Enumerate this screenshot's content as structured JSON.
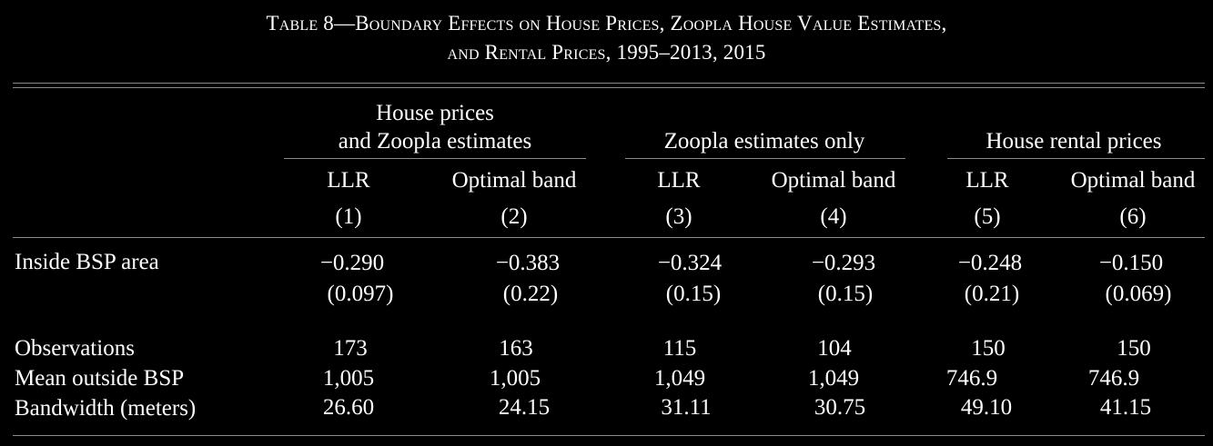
{
  "title": {
    "line1": "Table 8—Boundary Effects on House Prices, Zoopla House Value Estimates,",
    "line2": "and Rental Prices, 1995–2013, 2015"
  },
  "groups": [
    {
      "line1": "House prices",
      "line2": "and Zoopla estimates"
    },
    {
      "line1": "",
      "line2": "Zoopla estimates only"
    },
    {
      "line1": "",
      "line2": "House rental prices"
    }
  ],
  "columns": [
    {
      "method": "LLR",
      "number": "(1)"
    },
    {
      "method": "Optimal band",
      "number": "(2)"
    },
    {
      "method": "LLR",
      "number": "(3)"
    },
    {
      "method": "Optimal band",
      "number": "(4)"
    },
    {
      "method": "LLR",
      "number": "(5)"
    },
    {
      "method": "Optimal band",
      "number": "(6)"
    }
  ],
  "rows": {
    "inside": {
      "label": "Inside BSP area",
      "coef": [
        "−0.290",
        "−0.383",
        "−0.324",
        "−0.293",
        "−0.248",
        "−0.150"
      ],
      "se": [
        "(0.097)",
        "(0.22)",
        "(0.15)",
        "(0.15)",
        "(0.21)",
        "(0.069)"
      ]
    },
    "observations": {
      "label": "Observations",
      "values": [
        "173",
        "163",
        "115",
        "104",
        "150",
        "150"
      ]
    },
    "mean_outside": {
      "label": "Mean outside BSP",
      "values": [
        "1,005",
        "1,005",
        "1,049",
        "1,049",
        "746.9",
        "746.9"
      ]
    },
    "bandwidth": {
      "label": "Bandwidth (meters)",
      "values": [
        "26.60",
        "24.15",
        "31.11",
        "30.75",
        "49.10",
        "41.15"
      ]
    }
  }
}
